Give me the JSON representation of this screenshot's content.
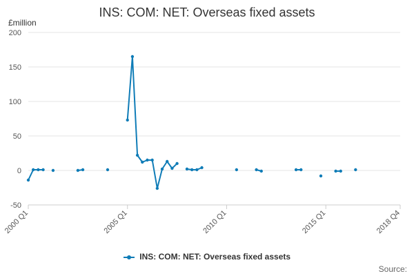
{
  "chart_data": {
    "type": "line",
    "title": "INS: COM: NET: Overseas fixed assets",
    "ylabel": "£million",
    "xlabel": "",
    "ylim": [
      -50,
      200
    ],
    "yticks": [
      -50,
      0,
      50,
      100,
      150,
      200
    ],
    "xticks": [
      "2000 Q1",
      "2005 Q1",
      "2010 Q1",
      "2015 Q1",
      "2018 Q4"
    ],
    "grid": true,
    "legend_position": "bottom",
    "series": [
      {
        "name": "INS: COM: NET: Overseas fixed assets",
        "color": "#0f7cb7",
        "points": [
          {
            "x": "2000 Q1",
            "y": -14
          },
          {
            "x": "2000 Q2",
            "y": 1
          },
          {
            "x": "2000 Q3",
            "y": 1
          },
          {
            "x": "2000 Q4",
            "y": 1
          },
          {
            "x": "2001 Q2",
            "y": 0
          },
          {
            "x": "2002 Q3",
            "y": 0
          },
          {
            "x": "2002 Q4",
            "y": 1
          },
          {
            "x": "2004 Q1",
            "y": 1
          },
          {
            "x": "2005 Q1",
            "y": 73
          },
          {
            "x": "2005 Q2",
            "y": 165
          },
          {
            "x": "2005 Q3",
            "y": 22
          },
          {
            "x": "2005 Q4",
            "y": 12
          },
          {
            "x": "2006 Q1",
            "y": 15
          },
          {
            "x": "2006 Q2",
            "y": 15
          },
          {
            "x": "2006 Q3",
            "y": -26
          },
          {
            "x": "2006 Q4",
            "y": 2
          },
          {
            "x": "2007 Q1",
            "y": 13
          },
          {
            "x": "2007 Q2",
            "y": 3
          },
          {
            "x": "2007 Q3",
            "y": 10
          },
          {
            "x": "2008 Q1",
            "y": 2
          },
          {
            "x": "2008 Q2",
            "y": 1
          },
          {
            "x": "2008 Q3",
            "y": 1
          },
          {
            "x": "2008 Q4",
            "y": 4
          },
          {
            "x": "2010 Q3",
            "y": 1
          },
          {
            "x": "2011 Q3",
            "y": 1
          },
          {
            "x": "2011 Q4",
            "y": -1
          },
          {
            "x": "2013 Q3",
            "y": 1
          },
          {
            "x": "2013 Q4",
            "y": 1
          },
          {
            "x": "2014 Q4",
            "y": -8
          },
          {
            "x": "2015 Q3",
            "y": -1
          },
          {
            "x": "2015 Q4",
            "y": -1
          },
          {
            "x": "2016 Q3",
            "y": 1
          }
        ]
      }
    ]
  },
  "footer": {
    "source_label": "Source:"
  }
}
